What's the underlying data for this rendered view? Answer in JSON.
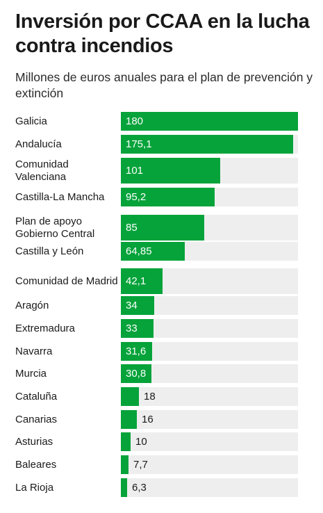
{
  "title": "Inversión por CCAA en la lucha contra incendios",
  "subtitle": "Millones de euros anuales para el plan de prevención y extinción",
  "colors": {
    "bar": "#05a33a",
    "track": "#eeeeee"
  },
  "chart_data": {
    "type": "bar",
    "orientation": "horizontal",
    "title": "Inversión por CCAA en la lucha contra incendios",
    "subtitle": "Millones de euros anuales para el plan de prevención y extinción",
    "xlim": [
      0,
      180
    ],
    "grid": false,
    "categories": [
      "Galicia",
      "Andalucía",
      "Comunidad Valenciana",
      "Castilla-La Mancha",
      "Plan de apoyo Gobierno Central",
      "Castilla y León",
      "Comunidad de Madrid",
      "Aragón",
      "Extremadura",
      "Navarra",
      "Murcia",
      "Cataluña",
      "Canarias",
      "Asturias",
      "Baleares",
      "La Rioja"
    ],
    "values": [
      180,
      175.1,
      101,
      95.2,
      85,
      64.85,
      42.1,
      34,
      33,
      31.6,
      30.8,
      18,
      16,
      10,
      7.7,
      6.3
    ],
    "value_labels": [
      "180",
      "175,1",
      "101",
      "95,2",
      "85",
      "64,85",
      "42,1",
      "34",
      "33",
      "31,6",
      "30,8",
      "18",
      "16",
      "10",
      "7,7",
      "6,3"
    ]
  }
}
